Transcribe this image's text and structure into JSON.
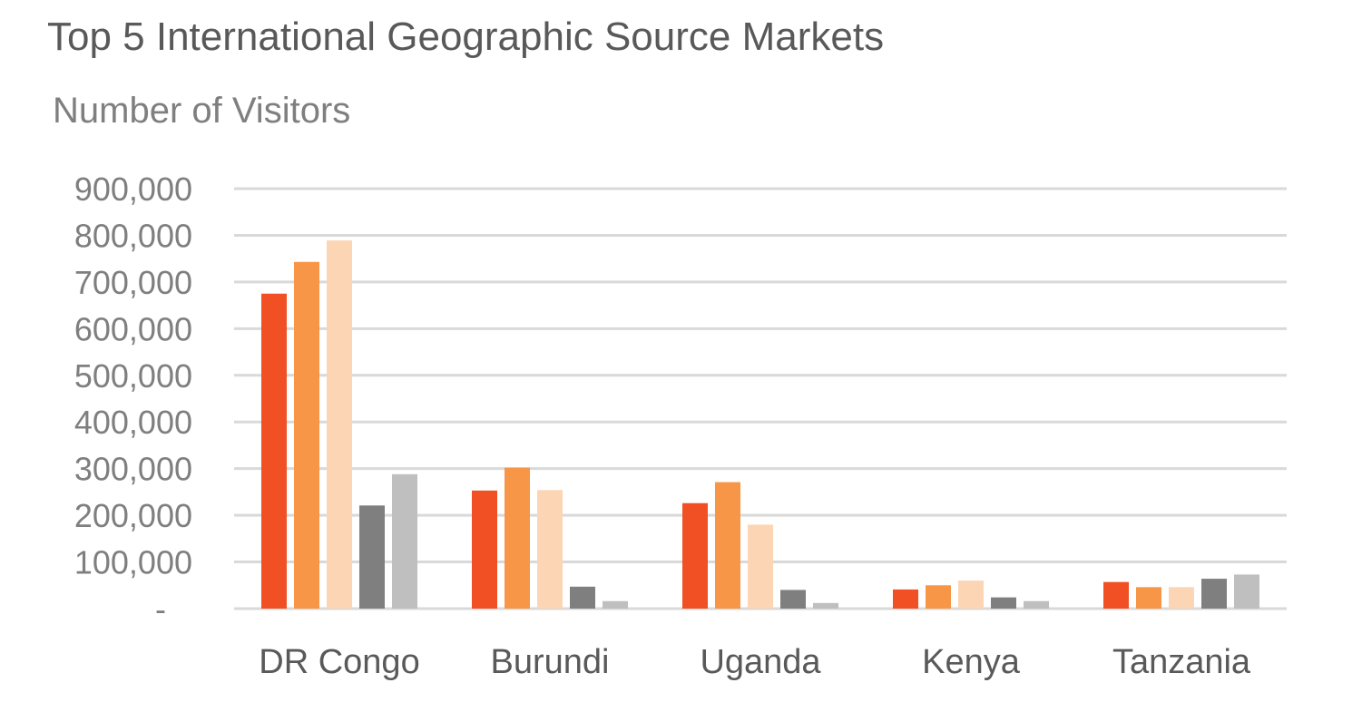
{
  "title": "Top 5 International Geographic Source Markets",
  "subtitle": "Number of Visitors",
  "chart_data": {
    "type": "bar",
    "title": "Top 5 International Geographic Source Markets",
    "subtitle": "Number of Visitors",
    "xlabel": "",
    "ylabel": "Number of Visitors",
    "categories": [
      "DR Congo",
      "Burundi",
      "Uganda",
      "Kenya",
      "Tanzania"
    ],
    "series": [
      {
        "values": [
          675000,
          253000,
          226000,
          41000,
          57000
        ],
        "color": "#F05023"
      },
      {
        "values": [
          743000,
          302000,
          271000,
          50000,
          46000
        ],
        "color": "#F79646"
      },
      {
        "values": [
          789000,
          254000,
          180000,
          60000,
          46000
        ],
        "color": "#FCD5B4"
      },
      {
        "values": [
          221000,
          47000,
          40000,
          24000,
          64000
        ],
        "color": "#7F7F7F"
      },
      {
        "values": [
          288000,
          16000,
          12000,
          16000,
          73000
        ],
        "color": "#BFBFBF"
      }
    ],
    "ylim": [
      0,
      900000
    ],
    "yticks": [
      0,
      100000,
      200000,
      300000,
      400000,
      500000,
      600000,
      700000,
      800000,
      900000
    ],
    "ytick_labels": [
      "-",
      "100,000",
      "200,000",
      "300,000",
      "400,000",
      "500,000",
      "600,000",
      "700,000",
      "800,000",
      "900,000"
    ],
    "grid": true,
    "legend": "none"
  }
}
